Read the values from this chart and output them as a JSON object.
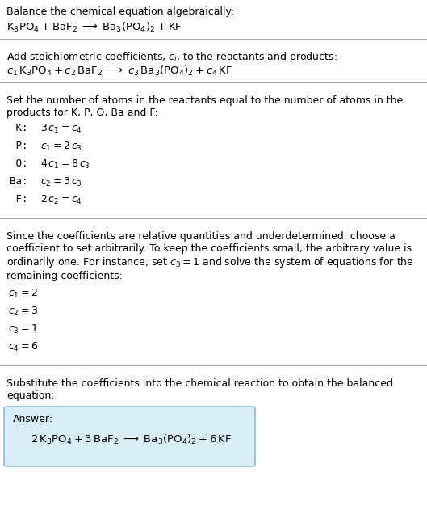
{
  "bg_color": "#ffffff",
  "text_color": "#000000",
  "section1_title": "Balance the chemical equation algebraically:",
  "section1_eq": "$\\mathrm{K_3PO_4 + BaF_2 \\;\\longrightarrow\\; Ba_3(PO_4)_2 + KF}$",
  "section2_title": "Add stoichiometric coefficients, $c_i$, to the reactants and products:",
  "section2_eq": "$c_1\\,\\mathrm{K_3PO_4} + c_2\\,\\mathrm{BaF_2} \\;\\longrightarrow\\; c_3\\,\\mathrm{Ba_3(PO_4)_2} + c_4\\,\\mathrm{KF}$",
  "section3_title": "Set the number of atoms in the reactants equal to the number of atoms in the\nproducts for K, P, O, Ba and F:",
  "section3_eqs": [
    [
      " K:",
      "$3\\,c_1 = c_4$"
    ],
    [
      " P:",
      "$c_1 = 2\\,c_3$"
    ],
    [
      " O:",
      "$4\\,c_1 = 8\\,c_3$"
    ],
    [
      "Ba:",
      "$c_2 = 3\\,c_3$"
    ],
    [
      " F:",
      "$2\\,c_2 = c_4$"
    ]
  ],
  "section4_title": "Since the coefficients are relative quantities and underdetermined, choose a\ncoefficient to set arbitrarily. To keep the coefficients small, the arbitrary value is\nordinarily one. For instance, set $c_3 = 1$ and solve the system of equations for the\nremaining coefficients:",
  "section4_eqs": [
    "$c_1 = 2$",
    "$c_2 = 3$",
    "$c_3 = 1$",
    "$c_4 = 6$"
  ],
  "section5_title": "Substitute the coefficients into the chemical reaction to obtain the balanced\nequation:",
  "answer_label": "Answer:",
  "answer_eq": "$2\\,\\mathrm{K_3PO_4} + 3\\,\\mathrm{BaF_2} \\;\\longrightarrow\\; \\mathrm{Ba_3(PO_4)_2} + 6\\,\\mathrm{KF}$",
  "answer_box_color": "#daeef8",
  "answer_box_border": "#8bbbd4",
  "line_color": "#aaaaaa",
  "figsize": [
    5.29,
    6.47
  ],
  "dpi": 100,
  "title_fs": 9.0,
  "eq_fs": 9.5,
  "mono_fs": 9.0
}
